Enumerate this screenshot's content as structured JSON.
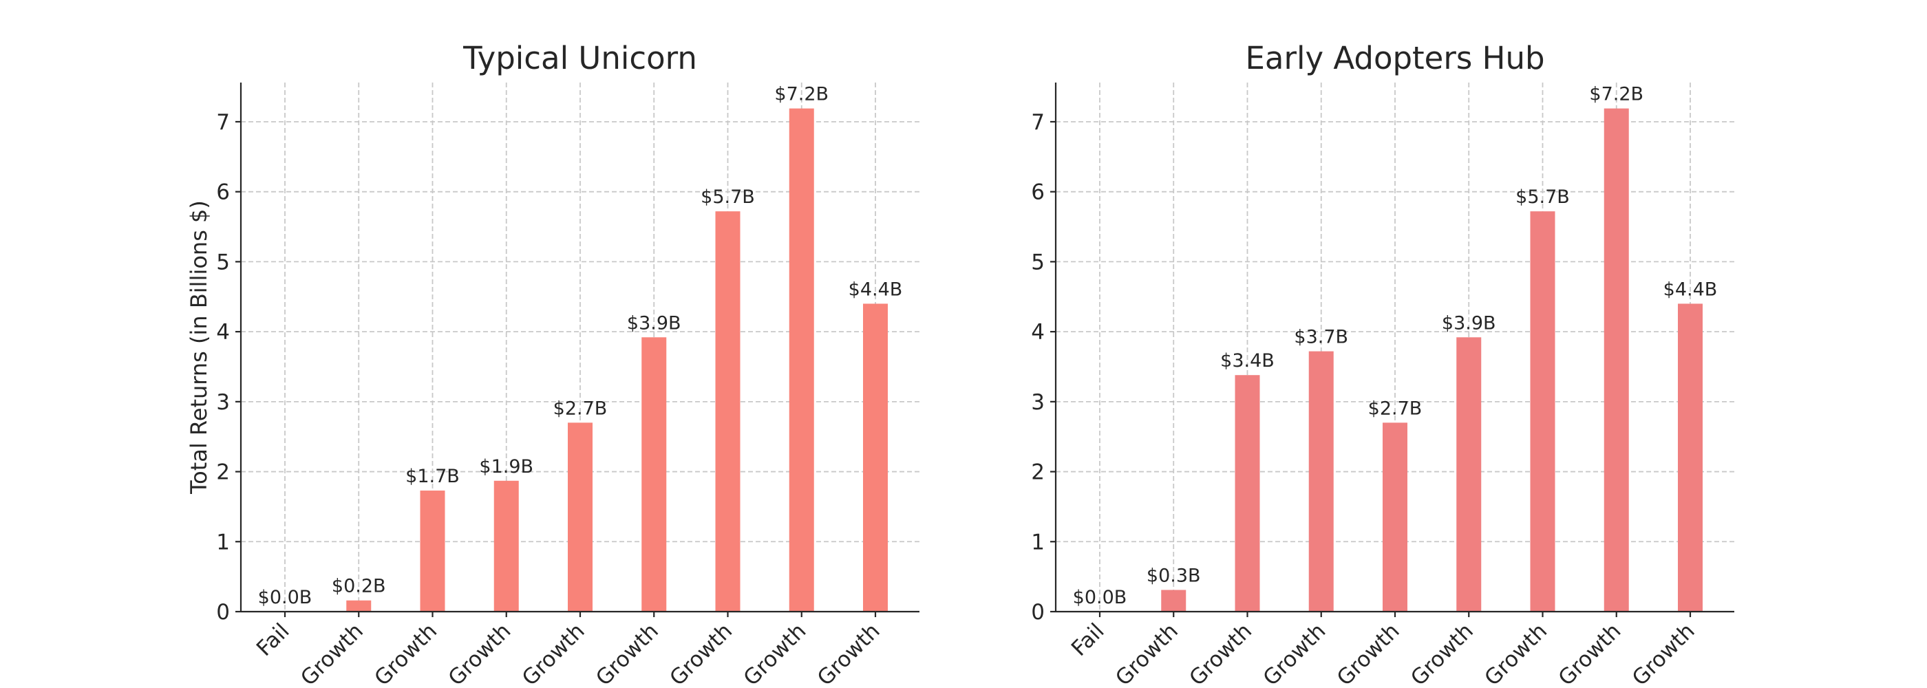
{
  "chart_data": [
    {
      "type": "bar",
      "title": "Typical Unicorn",
      "y_label": "Total Returns (in Billions $)",
      "categories": [
        "Fail",
        "Growth",
        "Growth",
        "Growth",
        "Growth",
        "Growth",
        "Growth",
        "Growth",
        "Growth"
      ],
      "values": [
        0.0,
        0.16,
        1.73,
        1.87,
        2.7,
        3.92,
        5.72,
        7.19,
        4.4
      ],
      "value_labels": [
        "$0.0B",
        "$0.2B",
        "$1.7B",
        "$1.9B",
        "$2.7B",
        "$3.9B",
        "$5.7B",
        "$7.2B",
        "$4.4B"
      ],
      "color": "#f88379",
      "ylim": [
        0,
        7.56
      ],
      "yticks": [
        0,
        1,
        2,
        3,
        4,
        5,
        6,
        7
      ],
      "grid": true
    },
    {
      "type": "bar",
      "title": "Early Adopters Hub",
      "categories": [
        "Fail",
        "Growth",
        "Growth",
        "Growth",
        "Growth",
        "Growth",
        "Growth",
        "Growth",
        "Growth"
      ],
      "values": [
        0.0,
        0.31,
        3.38,
        3.72,
        2.7,
        3.92,
        5.72,
        7.19,
        4.4
      ],
      "value_labels": [
        "$0.0B",
        "$0.3B",
        "$3.4B",
        "$3.7B",
        "$2.7B",
        "$3.9B",
        "$5.7B",
        "$7.2B",
        "$4.4B"
      ],
      "color": "#f08080",
      "ylim": [
        0,
        7.56
      ],
      "yticks": [
        0,
        1,
        2,
        3,
        4,
        5,
        6,
        7
      ],
      "grid": true
    }
  ]
}
